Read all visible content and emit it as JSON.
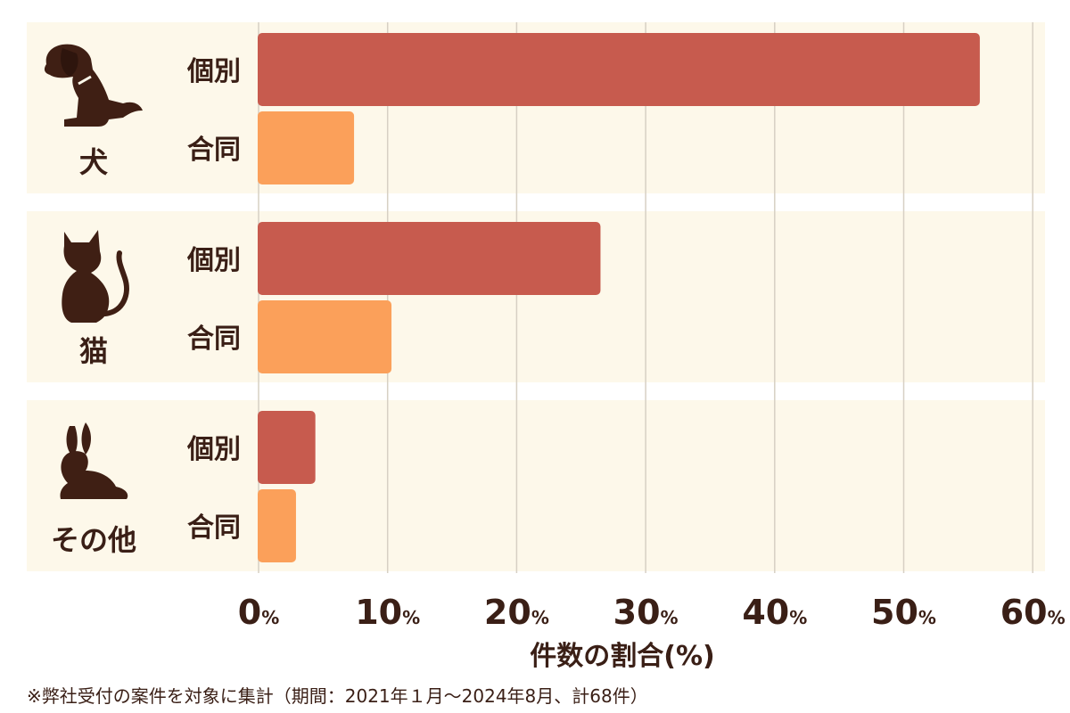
{
  "chart_data": {
    "type": "bar",
    "orientation": "horizontal",
    "categories": [
      {
        "name": "犬",
        "icon": "dog-icon"
      },
      {
        "name": "猫",
        "icon": "cat-icon"
      },
      {
        "name": "その他",
        "icon": "rabbit-icon"
      }
    ],
    "series": [
      {
        "name": "個別",
        "color": "#c75b4e",
        "values": [
          55.9,
          26.5,
          4.4
        ]
      },
      {
        "name": "合同",
        "color": "#fba05a",
        "values": [
          7.4,
          10.3,
          2.9
        ]
      }
    ],
    "xlabel": "件数の割合(%)",
    "xlim": [
      0,
      60
    ],
    "xticks": [
      {
        "value": 0,
        "num": "0",
        "unit": "%"
      },
      {
        "value": 10,
        "num": "10",
        "unit": "%"
      },
      {
        "value": 20,
        "num": "20",
        "unit": "%"
      },
      {
        "value": 30,
        "num": "30",
        "unit": "%"
      },
      {
        "value": 40,
        "num": "40",
        "unit": "%"
      },
      {
        "value": 50,
        "num": "50",
        "unit": "%"
      },
      {
        "value": 60,
        "num": "60",
        "unit": "%"
      }
    ],
    "grid": true,
    "panel_color": "#fdf8ea",
    "grid_color": "#d7d0c4",
    "text_color": "#3a1f16",
    "icon_color": "#3f1f14"
  },
  "footnote": "※弊社受付の案件を対象に集計（期間：2021年１月〜2024年8月、計68件）"
}
